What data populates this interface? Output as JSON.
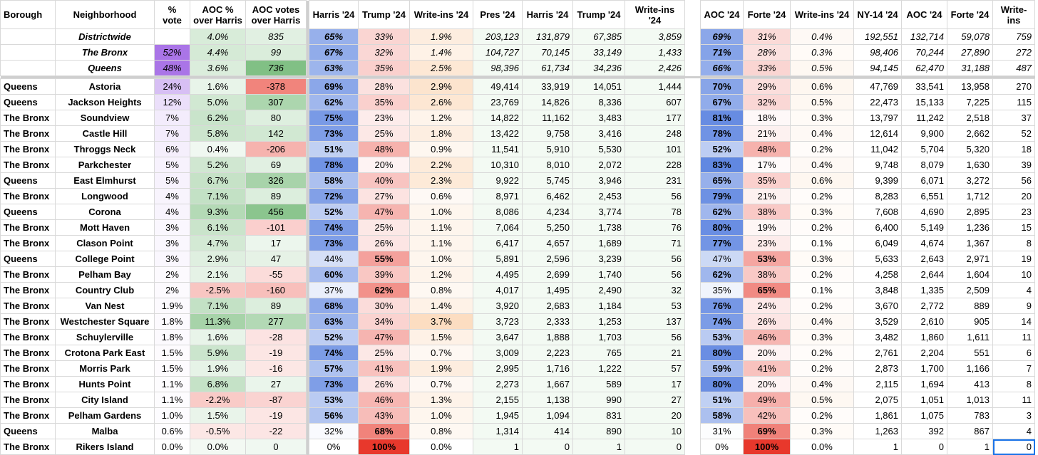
{
  "headers": [
    "Borough",
    "Neighborhood",
    "% vote",
    "AOC %\nover Harris",
    "AOC votes\nover Harris",
    "Harris '24",
    "Trump '24",
    "Write-ins '24",
    "Pres '24",
    "Harris '24",
    "Trump '24",
    "Write-ins '24",
    "AOC '24",
    "Forte '24",
    "Write-ins '24",
    "NY-14 '24",
    "AOC '24",
    "Forte '24",
    "Write-ins"
  ],
  "summary": [
    [
      "",
      "Districtwide",
      "",
      "4.0%",
      "835",
      "65%",
      "33%",
      "1.9%",
      "203,123",
      "131,879",
      "67,385",
      "3,859",
      "69%",
      "31%",
      "0.4%",
      "192,551",
      "132,714",
      "59,078",
      "759"
    ],
    [
      "",
      "The Bronx",
      "52%",
      "4.4%",
      "99",
      "67%",
      "32%",
      "1.4%",
      "104,727",
      "70,145",
      "33,149",
      "1,433",
      "71%",
      "28%",
      "0.3%",
      "98,406",
      "70,244",
      "27,890",
      "272"
    ],
    [
      "",
      "Queens",
      "48%",
      "3.6%",
      "736",
      "63%",
      "35%",
      "2.5%",
      "98,396",
      "61,734",
      "34,236",
      "2,426",
      "66%",
      "33%",
      "0.5%",
      "94,145",
      "62,470",
      "31,188",
      "487"
    ]
  ],
  "rows": [
    [
      "Queens",
      "Astoria",
      "24%",
      "1.6%",
      "-378",
      "69%",
      "28%",
      "2.9%",
      "49,414",
      "33,919",
      "14,051",
      "1,444",
      "70%",
      "29%",
      "0.6%",
      "47,769",
      "33,541",
      "13,958",
      "270"
    ],
    [
      "Queens",
      "Jackson Heights",
      "12%",
      "5.0%",
      "307",
      "62%",
      "35%",
      "2.6%",
      "23,769",
      "14,826",
      "8,336",
      "607",
      "67%",
      "32%",
      "0.5%",
      "22,473",
      "15,133",
      "7,225",
      "115"
    ],
    [
      "The Bronx",
      "Soundview",
      "7%",
      "6.2%",
      "80",
      "75%",
      "23%",
      "1.2%",
      "14,822",
      "11,162",
      "3,483",
      "177",
      "81%",
      "18%",
      "0.3%",
      "13,797",
      "11,242",
      "2,518",
      "37"
    ],
    [
      "The Bronx",
      "Castle Hill",
      "7%",
      "5.8%",
      "142",
      "73%",
      "25%",
      "1.8%",
      "13,422",
      "9,758",
      "3,416",
      "248",
      "78%",
      "21%",
      "0.4%",
      "12,614",
      "9,900",
      "2,662",
      "52"
    ],
    [
      "The Bronx",
      "Throggs Neck",
      "6%",
      "0.4%",
      "-206",
      "51%",
      "48%",
      "0.9%",
      "11,541",
      "5,910",
      "5,530",
      "101",
      "52%",
      "48%",
      "0.2%",
      "11,042",
      "5,704",
      "5,320",
      "18"
    ],
    [
      "The Bronx",
      "Parkchester",
      "5%",
      "5.2%",
      "69",
      "78%",
      "20%",
      "2.2%",
      "10,310",
      "8,010",
      "2,072",
      "228",
      "83%",
      "17%",
      "0.4%",
      "9,748",
      "8,079",
      "1,630",
      "39"
    ],
    [
      "Queens",
      "East Elmhurst",
      "5%",
      "6.7%",
      "326",
      "58%",
      "40%",
      "2.3%",
      "9,922",
      "5,745",
      "3,946",
      "231",
      "65%",
      "35%",
      "0.6%",
      "9,399",
      "6,071",
      "3,272",
      "56"
    ],
    [
      "The Bronx",
      "Longwood",
      "4%",
      "7.1%",
      "89",
      "72%",
      "27%",
      "0.6%",
      "8,971",
      "6,462",
      "2,453",
      "56",
      "79%",
      "21%",
      "0.2%",
      "8,283",
      "6,551",
      "1,712",
      "20"
    ],
    [
      "Queens",
      "Corona",
      "4%",
      "9.3%",
      "456",
      "52%",
      "47%",
      "1.0%",
      "8,086",
      "4,234",
      "3,774",
      "78",
      "62%",
      "38%",
      "0.3%",
      "7,608",
      "4,690",
      "2,895",
      "23"
    ],
    [
      "The Bronx",
      "Mott Haven",
      "3%",
      "6.1%",
      "-101",
      "74%",
      "25%",
      "1.1%",
      "7,064",
      "5,250",
      "1,738",
      "76",
      "80%",
      "19%",
      "0.2%",
      "6,400",
      "5,149",
      "1,236",
      "15"
    ],
    [
      "The Bronx",
      "Clason Point",
      "3%",
      "4.7%",
      "17",
      "73%",
      "26%",
      "1.1%",
      "6,417",
      "4,657",
      "1,689",
      "71",
      "77%",
      "23%",
      "0.1%",
      "6,049",
      "4,674",
      "1,367",
      "8"
    ],
    [
      "Queens",
      "College Point",
      "3%",
      "2.9%",
      "47",
      "44%",
      "55%",
      "1.0%",
      "5,891",
      "2,596",
      "3,239",
      "56",
      "47%",
      "53%",
      "0.3%",
      "5,633",
      "2,643",
      "2,971",
      "19"
    ],
    [
      "The Bronx",
      "Pelham Bay",
      "2%",
      "2.1%",
      "-55",
      "60%",
      "39%",
      "1.2%",
      "4,495",
      "2,699",
      "1,740",
      "56",
      "62%",
      "38%",
      "0.2%",
      "4,258",
      "2,644",
      "1,604",
      "10"
    ],
    [
      "The Bronx",
      "Country Club",
      "2%",
      "-2.5%",
      "-160",
      "37%",
      "62%",
      "0.8%",
      "4,017",
      "1,495",
      "2,490",
      "32",
      "35%",
      "65%",
      "0.1%",
      "3,848",
      "1,335",
      "2,509",
      "4"
    ],
    [
      "The Bronx",
      "Van Nest",
      "1.9%",
      "7.1%",
      "89",
      "68%",
      "30%",
      "1.4%",
      "3,920",
      "2,683",
      "1,184",
      "53",
      "76%",
      "24%",
      "0.2%",
      "3,670",
      "2,772",
      "889",
      "9"
    ],
    [
      "The Bronx",
      "Westchester Square",
      "1.8%",
      "11.3%",
      "277",
      "63%",
      "34%",
      "3.7%",
      "3,723",
      "2,333",
      "1,253",
      "137",
      "74%",
      "26%",
      "0.4%",
      "3,529",
      "2,610",
      "905",
      "14"
    ],
    [
      "The Bronx",
      "Schuylerville",
      "1.8%",
      "1.6%",
      "-28",
      "52%",
      "47%",
      "1.5%",
      "3,647",
      "1,888",
      "1,703",
      "56",
      "53%",
      "46%",
      "0.3%",
      "3,482",
      "1,860",
      "1,611",
      "11"
    ],
    [
      "The Bronx",
      "Crotona Park East",
      "1.5%",
      "5.9%",
      "-19",
      "74%",
      "25%",
      "0.7%",
      "3,009",
      "2,223",
      "765",
      "21",
      "80%",
      "20%",
      "0.2%",
      "2,761",
      "2,204",
      "551",
      "6"
    ],
    [
      "The Bronx",
      "Morris Park",
      "1.5%",
      "1.9%",
      "-16",
      "57%",
      "41%",
      "1.9%",
      "2,995",
      "1,716",
      "1,222",
      "57",
      "59%",
      "41%",
      "0.2%",
      "2,873",
      "1,700",
      "1,166",
      "7"
    ],
    [
      "The Bronx",
      "Hunts Point",
      "1.1%",
      "6.8%",
      "27",
      "73%",
      "26%",
      "0.7%",
      "2,273",
      "1,667",
      "589",
      "17",
      "80%",
      "20%",
      "0.4%",
      "2,115",
      "1,694",
      "413",
      "8"
    ],
    [
      "The Bronx",
      "City Island",
      "1.1%",
      "-2.2%",
      "-87",
      "53%",
      "46%",
      "1.3%",
      "2,155",
      "1,138",
      "990",
      "27",
      "51%",
      "49%",
      "0.5%",
      "2,075",
      "1,051",
      "1,013",
      "11"
    ],
    [
      "The Bronx",
      "Pelham Gardens",
      "1.0%",
      "1.5%",
      "-19",
      "56%",
      "43%",
      "1.0%",
      "1,945",
      "1,094",
      "831",
      "20",
      "58%",
      "42%",
      "0.2%",
      "1,861",
      "1,075",
      "783",
      "3"
    ],
    [
      "Queens",
      "Malba",
      "0.6%",
      "-0.5%",
      "-22",
      "32%",
      "68%",
      "0.8%",
      "1,314",
      "414",
      "890",
      "10",
      "31%",
      "69%",
      "0.3%",
      "1,263",
      "392",
      "867",
      "4"
    ],
    [
      "The Bronx",
      "Rikers Island",
      "0.0%",
      "0.0%",
      "0",
      "0%",
      "100%",
      "0.0%",
      "1",
      "0",
      "1",
      "0",
      "0%",
      "100%",
      "0.0%",
      "1",
      "0",
      "1",
      "0"
    ]
  ],
  "colors": {
    "blue": "#5b83e0",
    "red": "#e8382c",
    "green": "#6bb56f",
    "purple": "#a56ee6",
    "writein": "#fbe3c7"
  }
}
